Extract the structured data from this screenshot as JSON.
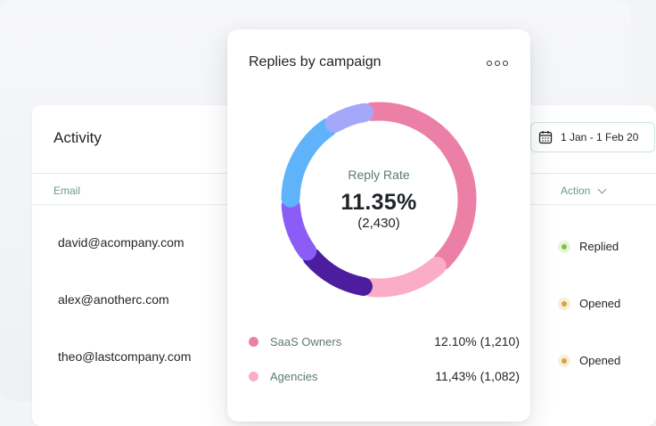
{
  "activity": {
    "title": "Activity",
    "columns": {
      "email": "Email",
      "action": "Action"
    },
    "date_range": "1 Jan - 1 Feb 20",
    "rows": [
      {
        "email": "david@acompany.com",
        "status": "Replied",
        "status_color": "#7cc242",
        "status_bg": "#e8f5dc"
      },
      {
        "email": "alex@anotherc.com",
        "status": "Opened",
        "status_color": "#d9a53a",
        "status_bg": "#f8efd9"
      },
      {
        "email": "theo@lastcompany.com",
        "status": "Opened",
        "status_color": "#d9a53a",
        "status_bg": "#f8efd9"
      }
    ]
  },
  "replies": {
    "title": "Replies by campaign",
    "menu_icon": "more-horizontal-icon",
    "center": {
      "label": "Reply Rate",
      "value": "11.35%",
      "count": "(2,430)"
    },
    "legend": [
      {
        "name": "SaaS Owners",
        "value": "12.10% (1,210)",
        "color": "#ec7fa6"
      },
      {
        "name": "Agencies",
        "value": "11,43% (1,082)",
        "color": "#fbadc8"
      }
    ]
  },
  "chart_data": {
    "type": "pie",
    "variant": "donut",
    "series": [
      {
        "name": "SaaS Owners",
        "value": 39,
        "color": "#ec7fa6"
      },
      {
        "name": "Agencies",
        "value": 14,
        "color": "#fbadc8"
      },
      {
        "value": 12,
        "color": "#4c1d9e"
      },
      {
        "value": 10,
        "color": "#8b5cf6"
      },
      {
        "value": 16,
        "color": "#5fb3fa"
      },
      {
        "value": 7,
        "color": "#a5a7fb"
      }
    ]
  }
}
